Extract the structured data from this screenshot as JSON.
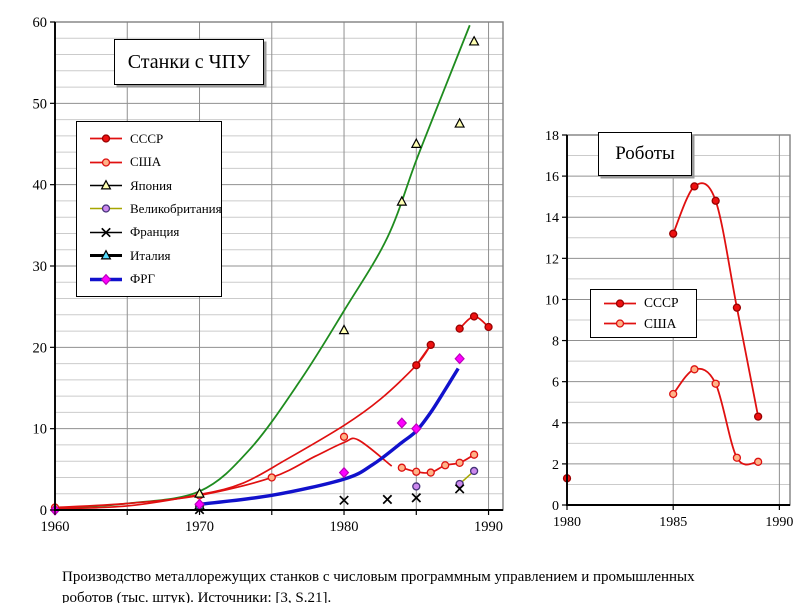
{
  "caption": "Производство металлорежущих станков с числовым программным управлением и промышленных\nроботов (тыс. штук). Источники: [3, S.21].",
  "palette": {
    "major_grid": "#909090",
    "minor_grid": "#cbcbcb",
    "plot_border": "#808080",
    "axis": "#000000",
    "background": "#ffffff",
    "red": "#e01010",
    "green_trend": "#1f8c1f",
    "blue": "#1111cc",
    "magenta": "#ff00ff"
  },
  "chart_data": [
    {
      "type": "line",
      "title": "Станки с ЧПУ",
      "x_axis": {
        "min": 1960,
        "max": 1991,
        "labels": [
          1960,
          1970,
          1980,
          1990
        ],
        "ticks": [
          1960,
          1965,
          1970,
          1975,
          1980,
          1985,
          1990
        ],
        "gridlines": [
          1965,
          1970,
          1975,
          1980,
          1985,
          1990
        ]
      },
      "y_axis": {
        "max": 60,
        "major_step": 10,
        "minor_step": 2,
        "labels": [
          0,
          10,
          20,
          30,
          40,
          50,
          60
        ]
      },
      "grid": "on",
      "legend_position": "upper-left-inside",
      "draw_order": [
        1,
        3,
        4,
        5,
        6,
        2,
        0
      ],
      "series": [
        {
          "id": "ussr",
          "name": "СССР",
          "line_color": "#e01010",
          "line_width": 1.7,
          "marker": "circle",
          "marker_fill": "#ee1111",
          "marker_edge": "#990000",
          "segments": [
            [
              [
                1985,
                17.8
              ],
              [
                1986,
                20.3
              ]
            ],
            [
              [
                1988,
                22.3
              ],
              [
                1989,
                23.8
              ],
              [
                1990,
                22.5
              ]
            ]
          ]
        },
        {
          "id": "usa",
          "name": "США",
          "line_color": "#e01010",
          "line_width": 1.7,
          "marker": "circle",
          "marker_fill": "#ffb388",
          "marker_edge": "#dd1111",
          "segments": [
            [
              [
                1960,
                0.3
              ]
            ],
            [
              [
                1970,
                1.8
              ]
            ],
            [
              [
                1975,
                4.0
              ]
            ],
            [
              [
                1980,
                9.0
              ]
            ],
            [
              [
                1984,
                5.2
              ],
              [
                1985,
                4.7
              ],
              [
                1986,
                4.6
              ],
              [
                1987,
                5.5
              ],
              [
                1988,
                5.8
              ],
              [
                1989,
                6.8
              ]
            ]
          ]
        },
        {
          "id": "japan",
          "name": "Япония",
          "line_color": "#000000",
          "line_width": 1.2,
          "marker": "triangle",
          "marker_fill": "#ffffb3",
          "marker_edge": "#000000",
          "segments": [
            [
              [
                1970,
                2.0
              ]
            ],
            [
              [
                1980,
                22.1
              ]
            ],
            [
              [
                1984,
                37.9
              ]
            ],
            [
              [
                1985,
                45.0
              ]
            ],
            [
              [
                1988,
                47.5
              ]
            ],
            [
              [
                1989,
                57.6
              ]
            ]
          ]
        },
        {
          "id": "uk",
          "name": "Великобритания",
          "line_color": "#a6a600",
          "line_width": 1.5,
          "marker": "circle",
          "marker_fill": "#cc88ee",
          "marker_edge": "#443377",
          "segments": [
            [
              [
                1985,
                2.9
              ]
            ],
            [
              [
                1988,
                3.2
              ],
              [
                1989,
                4.8
              ]
            ]
          ]
        },
        {
          "id": "france",
          "name": "Франция",
          "line_color": "#000000",
          "line_width": 1.2,
          "marker": "x",
          "marker_fill": "none",
          "marker_edge": "#000000",
          "segments": [
            [
              [
                1970,
                0.05
              ]
            ],
            [
              [
                1980,
                1.2
              ]
            ],
            [
              [
                1983,
                1.3
              ]
            ],
            [
              [
                1985,
                1.5
              ]
            ],
            [
              [
                1988,
                2.6
              ]
            ]
          ]
        },
        {
          "id": "italy",
          "name": "Италия",
          "line_color": "#000000",
          "line_width": 3,
          "marker": "triangle",
          "marker_fill": "#55ddff",
          "marker_edge": "#000000",
          "segments": [
            [
              [
                1970,
                0.55
              ]
            ]
          ]
        },
        {
          "id": "frg",
          "name": "ФРГ",
          "line_color": "#1111cc",
          "line_width": 3.4,
          "marker": "diamond",
          "marker_fill": "#ff00ff",
          "marker_edge": "#bb00bb",
          "segments": [
            [
              [
                1960,
                0.0
              ]
            ],
            [
              [
                1970,
                0.7
              ]
            ],
            [
              [
                1980,
                4.6
              ]
            ],
            [
              [
                1984,
                10.7
              ]
            ],
            [
              [
                1985,
                10.0
              ]
            ],
            [
              [
                1988,
                18.6
              ]
            ]
          ]
        }
      ],
      "curves": [
        {
          "id": "japan-trend",
          "color": "#1f8c1f",
          "width": 1.8,
          "points": [
            [
              1960,
              0.2
            ],
            [
              1965,
              0.8
            ],
            [
              1970,
              2.3
            ],
            [
              1973.5,
              7.5
            ],
            [
              1977,
              16
            ],
            [
              1980,
              24.5
            ],
            [
              1983,
              33.5
            ],
            [
              1985,
              43
            ],
            [
              1987,
              52
            ],
            [
              1988.7,
              59.6
            ]
          ]
        },
        {
          "id": "ussr-trend",
          "color": "#e01010",
          "width": 1.7,
          "points": [
            [
              1960,
              0.15
            ],
            [
              1965,
              0.5
            ],
            [
              1970,
              1.9
            ],
            [
              1973,
              3.3
            ],
            [
              1976,
              6.2
            ],
            [
              1980,
              10.4
            ],
            [
              1982.5,
              13.6
            ],
            [
              1985,
              17.8
            ],
            [
              1986,
              20.3
            ]
          ]
        },
        {
          "id": "usa-trend",
          "color": "#e01010",
          "width": 1.7,
          "points": [
            [
              1960,
              0.3
            ],
            [
              1965,
              0.8
            ],
            [
              1970,
              1.8
            ],
            [
              1975,
              4.0
            ],
            [
              1978,
              6.6
            ],
            [
              1980,
              8.3
            ],
            [
              1981,
              8.6
            ],
            [
              1983.3,
              5.4
            ]
          ]
        },
        {
          "id": "frg-trend",
          "color": "#1111cc",
          "width": 3.4,
          "points": [
            [
              1970,
              0.7
            ],
            [
              1975,
              1.8
            ],
            [
              1980,
              3.8
            ],
            [
              1982,
              5.6
            ],
            [
              1984,
              8.3
            ],
            [
              1985,
              9.7
            ],
            [
              1986,
              12.0
            ],
            [
              1987,
              14.8
            ],
            [
              1987.9,
              17.4
            ]
          ]
        }
      ]
    },
    {
      "type": "line",
      "title": "Роботы",
      "x_axis": {
        "min": 1980,
        "max": 1990.5,
        "labels": [
          1980,
          1985,
          1990
        ],
        "ticks": [
          1980,
          1985,
          1990
        ],
        "gridlines": [
          1985,
          1990
        ]
      },
      "y_axis": {
        "max": 18,
        "major_step": 2,
        "minor_step": 1,
        "labels": [
          0,
          2,
          4,
          6,
          8,
          10,
          12,
          14,
          16,
          18
        ]
      },
      "grid": "on",
      "legend_position": "middle-left-inside",
      "draw_order": [
        1,
        0
      ],
      "series": [
        {
          "id": "ussr",
          "name": "СССР",
          "line_color": "#e01010",
          "line_width": 1.8,
          "marker": "circle",
          "marker_fill": "#ee1111",
          "marker_edge": "#990000",
          "segments": [
            [
              [
                1980,
                1.3
              ]
            ],
            [
              [
                1985,
                13.2
              ],
              [
                1986,
                15.5
              ],
              [
                1987,
                14.8
              ],
              [
                1988,
                9.6
              ],
              [
                1989,
                4.3
              ]
            ]
          ]
        },
        {
          "id": "usa",
          "name": "США",
          "line_color": "#e01010",
          "line_width": 1.8,
          "marker": "circle",
          "marker_fill": "#ffb388",
          "marker_edge": "#dd1111",
          "segments": [
            [
              [
                1985,
                5.4
              ],
              [
                1986,
                6.6
              ],
              [
                1987,
                5.9
              ],
              [
                1988,
                2.3
              ],
              [
                1989,
                2.1
              ]
            ]
          ]
        }
      ],
      "curves": []
    }
  ]
}
